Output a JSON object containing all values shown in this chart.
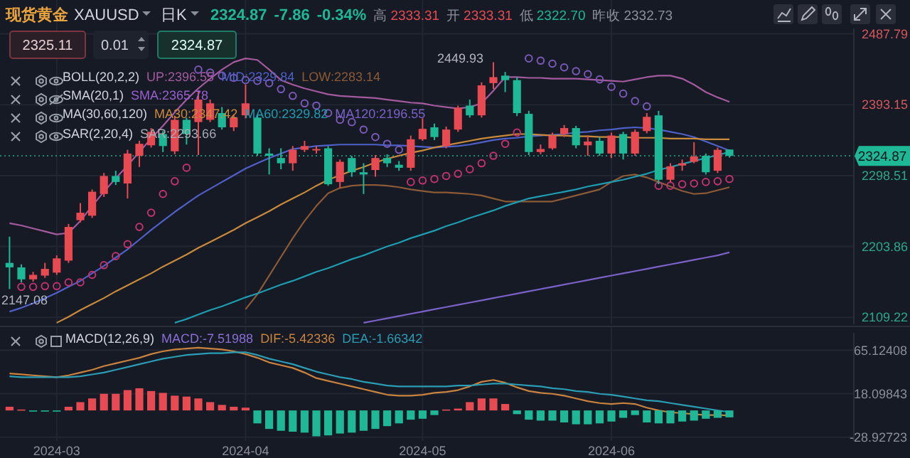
{
  "chart_data": [
    {
      "type": "candlestick",
      "title": "现货黄金",
      "legend": "top left",
      "grid": true,
      "tick_labels": "y",
      "categories": [
        null,
        null,
        null,
        null,
        null,
        null,
        null,
        null,
        null,
        null,
        null,
        null,
        null,
        null,
        null,
        null,
        null,
        null,
        null,
        null,
        null,
        null,
        null,
        null,
        null,
        null,
        null,
        null,
        null,
        null,
        null,
        null,
        null,
        null,
        null,
        null,
        null,
        null,
        null,
        null,
        null,
        null,
        null,
        null,
        null,
        null,
        null,
        null,
        null,
        null,
        null,
        null,
        null,
        null,
        null,
        null,
        null,
        null,
        null,
        null,
        null,
        null
      ],
      "ohlc": [
        [
          2182,
          2217,
          2147.08,
          2176
        ],
        [
          2176,
          2180,
          2156,
          2160
        ],
        [
          2160,
          2170,
          2157,
          2166
        ],
        [
          2165,
          2182,
          2162,
          2174
        ],
        [
          2169,
          2192,
          2166,
          2188
        ],
        [
          2185,
          2234,
          2182,
          2230
        ],
        [
          2239,
          2262,
          2236,
          2249
        ],
        [
          2245,
          2280,
          2242,
          2277
        ],
        [
          2274,
          2302,
          2270,
          2298
        ],
        [
          2298,
          2305,
          2286,
          2290
        ],
        [
          2288,
          2333,
          2268,
          2328
        ],
        [
          2325,
          2345,
          2310,
          2341
        ],
        [
          2339,
          2362,
          2336,
          2357
        ],
        [
          2354,
          2358,
          2330,
          2338
        ],
        [
          2331,
          2378,
          2327,
          2373
        ],
        [
          2373,
          2376,
          2340,
          2354
        ],
        [
          2370,
          2412,
          2326,
          2400
        ],
        [
          2373,
          2400,
          2370,
          2395
        ],
        [
          2382,
          2390,
          2360,
          2363
        ],
        [
          2363,
          2380,
          2358,
          2376
        ],
        [
          2379,
          2420,
          2375,
          2395
        ],
        [
          2376,
          2380,
          2325,
          2328
        ],
        [
          2328,
          2335,
          2300,
          2325
        ],
        [
          2322,
          2335,
          2307,
          2315
        ],
        [
          2315,
          2338,
          2305,
          2333
        ],
        [
          2333,
          2345,
          2330,
          2338
        ],
        [
          2333,
          2338,
          2328,
          2334
        ],
        [
          2335,
          2338,
          2285,
          2287
        ],
        [
          2290,
          2320,
          2282,
          2317
        ],
        [
          2322,
          2325,
          2297,
          2303
        ],
        [
          2303,
          2315,
          2274,
          2300
        ],
        [
          2306,
          2326,
          2297,
          2322
        ],
        [
          2322,
          2327,
          2310,
          2315
        ],
        [
          2313,
          2318,
          2305,
          2309
        ],
        [
          2309,
          2352,
          2305,
          2347
        ],
        [
          2347,
          2375,
          2345,
          2361
        ],
        [
          2363,
          2368,
          2346,
          2350
        ],
        [
          2338,
          2364,
          2335,
          2360
        ],
        [
          2360,
          2392,
          2357,
          2389
        ],
        [
          2392,
          2400,
          2376,
          2379
        ],
        [
          2379,
          2423,
          2376,
          2419
        ],
        [
          2422,
          2449.93,
          2414,
          2430
        ],
        [
          2432,
          2437,
          2410,
          2426
        ],
        [
          2426,
          2430,
          2378,
          2382
        ],
        [
          2381,
          2385,
          2326,
          2330
        ],
        [
          2330,
          2340,
          2327,
          2334
        ],
        [
          2335,
          2356,
          2333,
          2352
        ],
        [
          2354,
          2366,
          2350,
          2362
        ],
        [
          2362,
          2365,
          2335,
          2339
        ],
        [
          2339,
          2352,
          2325,
          2344
        ],
        [
          2345,
          2350,
          2325,
          2328
        ],
        [
          2328,
          2356,
          2322,
          2352
        ],
        [
          2354,
          2357,
          2320,
          2328
        ],
        [
          2328,
          2360,
          2325,
          2357
        ],
        [
          2358,
          2382,
          2355,
          2377
        ],
        [
          2379,
          2385,
          2287,
          2293
        ],
        [
          2293,
          2315,
          2290,
          2311
        ],
        [
          2312,
          2320,
          2305,
          2315
        ],
        [
          2317,
          2343,
          2315,
          2324
        ],
        [
          2325,
          2328,
          2300,
          2303
        ],
        [
          2305,
          2336,
          2302,
          2333
        ],
        [
          2333.31,
          2333.31,
          2322.7,
          2324.87
        ]
      ],
      "colors": [
        "#1fb896",
        "#1fb896",
        "#e84a52",
        "#e84a52",
        "#e84a52",
        "#e84a52",
        "#e84a52",
        "#e84a52",
        "#e84a52",
        "#1fb896",
        "#e84a52",
        "#e84a52",
        "#e84a52",
        "#1fb896",
        "#e84a52",
        "#1fb896",
        "#e84a52",
        "#e84a52",
        "#1fb896",
        "#e84a52",
        "#e84a52",
        "#1fb896",
        "#1fb896",
        "#1fb896",
        "#e84a52",
        "#e84a52",
        "#e84a52",
        "#1fb896",
        "#e84a52",
        "#1fb896",
        "#1fb896",
        "#e84a52",
        "#1fb896",
        "#1fb896",
        "#e84a52",
        "#e84a52",
        "#1fb896",
        "#e84a52",
        "#e84a52",
        "#1fb896",
        "#e84a52",
        "#e84a52",
        "#1fb896",
        "#1fb896",
        "#1fb896",
        "#e84a52",
        "#e84a52",
        "#e84a52",
        "#1fb896",
        "#e84a52",
        "#1fb896",
        "#e84a52",
        "#1fb896",
        "#e84a52",
        "#e84a52",
        "#1fb896",
        "#e84a52",
        "#e84a52",
        "#e84a52",
        "#1fb896",
        "#e84a52",
        "#1fb896"
      ],
      "series": [
        {
          "type": "line",
          "name": "UP:2396.55",
          "color": "#a45a9e",
          "values": [
            2235,
            2232,
            2228,
            2224,
            2220,
            2222,
            2238,
            2258,
            2277,
            2295,
            2312,
            2330,
            2348,
            2365,
            2383,
            2400,
            2415,
            2428,
            2440,
            2450,
            2455,
            2453,
            2440,
            2426,
            2420,
            2415,
            2411,
            2407,
            2405,
            2404,
            2403,
            2402,
            2400,
            2398,
            2396,
            2395,
            2392,
            2390,
            2388,
            2390,
            2395,
            2412,
            2430,
            2430,
            2429,
            2429,
            2428,
            2428,
            2428,
            2427,
            2426,
            2425,
            2424,
            2427,
            2430,
            2432,
            2432,
            2428,
            2420,
            2410,
            2403,
            2397
          ]
        },
        {
          "type": "line",
          "name": "MID:2329.84",
          "color": "#4f60c8",
          "values": [
            2117,
            2122,
            2128,
            2135,
            2142,
            2150,
            2158,
            2168,
            2178,
            2189,
            2200,
            2213,
            2226,
            2238,
            2250,
            2261,
            2272,
            2281,
            2290,
            2299,
            2308,
            2315,
            2322,
            2328,
            2334,
            2336,
            2338,
            2339,
            2340,
            2340,
            2340,
            2340,
            2339,
            2339,
            2338,
            2337,
            2336,
            2337,
            2338,
            2340,
            2343,
            2346,
            2348,
            2349,
            2351,
            2352,
            2353,
            2354,
            2356,
            2357,
            2359,
            2360,
            2362,
            2363,
            2362,
            2360,
            2357,
            2354,
            2350,
            2344,
            2338,
            2332
          ]
        },
        {
          "type": "line",
          "name": "LOW:2283.14",
          "color": "#8c5a35",
          "values": [
            null,
            null,
            null,
            null,
            null,
            null,
            null,
            null,
            null,
            null,
            null,
            null,
            null,
            null,
            null,
            null,
            null,
            null,
            null,
            null,
            2120,
            2140,
            2165,
            2190,
            2215,
            2238,
            2258,
            2275,
            2282,
            2285,
            2286,
            2286,
            2285,
            2283,
            2280,
            2278,
            2276,
            2276,
            2275,
            2274,
            2272,
            2268,
            2264,
            2264,
            2264,
            2264,
            2264,
            2268,
            2272,
            2276,
            2280,
            2290,
            2298,
            2300,
            2296,
            2290,
            2284,
            2278,
            2274,
            2275,
            2279,
            2283
          ]
        },
        {
          "type": "line",
          "name": "MA30:2347.42",
          "color": "#c98a3c",
          "values": [
            null,
            null,
            null,
            null,
            2102,
            2110,
            2119,
            2127,
            2135,
            2144,
            2152,
            2160,
            2168,
            2177,
            2185,
            2193,
            2202,
            2210,
            2218,
            2226,
            2235,
            2243,
            2251,
            2260,
            2268,
            2276,
            2285,
            2293,
            2299,
            2305,
            2310,
            2316,
            2321,
            2325,
            2329,
            2332,
            2336,
            2339,
            2342,
            2345,
            2348,
            2350,
            2352,
            2354,
            2354,
            2353,
            2352,
            2352,
            2351,
            2351,
            2350,
            2350,
            2350,
            2349,
            2349,
            2349,
            2348,
            2348,
            2348,
            2347,
            2347,
            2347
          ]
        },
        {
          "type": "line",
          "name": "MA60:2329.82",
          "color": "#1e9cb0",
          "values": [
            null,
            null,
            null,
            null,
            null,
            null,
            null,
            null,
            null,
            null,
            null,
            null,
            null,
            null,
            2102,
            2107,
            2113,
            2119,
            2124,
            2130,
            2136,
            2141,
            2147,
            2153,
            2158,
            2164,
            2170,
            2175,
            2181,
            2187,
            2192,
            2198,
            2204,
            2209,
            2215,
            2220,
            2225,
            2231,
            2236,
            2242,
            2247,
            2252,
            2258,
            2263,
            2268,
            2271,
            2274,
            2277,
            2280,
            2284,
            2287,
            2290,
            2293,
            2297,
            2301,
            2306,
            2310,
            2314,
            2318,
            2322,
            2326,
            2330
          ]
        },
        {
          "type": "line",
          "name": "MA120:2196.55",
          "color": "#7b62c9",
          "values": [
            null,
            null,
            null,
            null,
            null,
            null,
            null,
            null,
            null,
            null,
            null,
            null,
            null,
            null,
            null,
            null,
            null,
            null,
            null,
            null,
            null,
            null,
            null,
            null,
            null,
            null,
            null,
            null,
            null,
            null,
            2102,
            2105,
            2108,
            2111,
            2114,
            2117,
            2120,
            2123,
            2126,
            2129,
            2132,
            2135,
            2138,
            2141,
            2144,
            2147,
            2150,
            2153,
            2156,
            2159,
            2162,
            2165,
            2168,
            2171,
            2174,
            2177,
            2180,
            2183,
            2186,
            2189,
            2192,
            2196
          ]
        },
        {
          "type": "scatter",
          "color": "#c2326e",
          "marker": "circle",
          "values": [
            null,
            2150,
            2150,
            2151,
            2151,
            2156,
            2156,
            2166,
            2179,
            2191,
            2207,
            2230,
            2249,
            2274,
            2291,
            2309,
            null,
            null,
            null,
            null,
            null,
            null,
            null,
            null,
            null,
            null,
            null,
            null,
            null,
            null,
            null,
            null,
            null,
            null,
            2290,
            2292,
            2294,
            2298,
            2301,
            2307,
            2315,
            2325,
            2341,
            2356,
            null,
            null,
            null,
            null,
            null,
            null,
            null,
            null,
            null,
            null,
            null,
            2285,
            2285,
            2287,
            2288,
            2290,
            2291,
            2294
          ]
        },
        {
          "type": "scatter",
          "color": "#7a5ab8",
          "marker": "circle",
          "values": [
            null,
            null,
            null,
            null,
            null,
            null,
            null,
            null,
            null,
            null,
            null,
            null,
            null,
            null,
            null,
            null,
            2440,
            2436,
            2432,
            2429,
            2426,
            2425,
            2422,
            2414,
            2405,
            2395,
            2392,
            2382,
            2373,
            2370,
            2360,
            2350,
            2341,
            2333,
            null,
            null,
            null,
            null,
            null,
            null,
            null,
            null,
            null,
            null,
            2455,
            2452,
            2448,
            2443,
            2438,
            2434,
            2427,
            2417,
            2408,
            2398,
            2391,
            null,
            null,
            null,
            null,
            null,
            null,
            null
          ]
        }
      ],
      "ylim": [
        2100,
        2495
      ],
      "yticks": [
        2109.22,
        2203.86,
        2298.51,
        2393.15,
        2487.79
      ],
      "ref_lines": [
        {
          "axis": "y",
          "value": 2324.87,
          "color": "#1fb896",
          "line_style": "dotted"
        }
      ],
      "annotations": [
        "XAUUSD",
        "日K",
        "2324.87",
        "-7.86",
        "-0.34%",
        "高",
        "2333.31",
        "开",
        "2333.31",
        "低",
        "2322.70",
        "昨收",
        "2332.73",
        "2325.11",
        "0.01",
        "2324.87",
        "BOLL(20,2,2)",
        "SMA(20,1)",
        "SMA:2365.78",
        "MA(30,60,120)",
        "SAR(2,20,4)",
        "SAR:2293.66",
        "2449.93",
        "2147.08",
        "2324.87"
      ]
    },
    {
      "type": "bar",
      "legend": "top left",
      "grid": true,
      "categories": [
        null,
        null,
        null,
        null,
        "2024-03",
        null,
        null,
        null,
        null,
        null,
        null,
        null,
        null,
        null,
        null,
        null,
        null,
        null,
        null,
        null,
        "2024-04",
        null,
        null,
        null,
        null,
        null,
        null,
        null,
        null,
        null,
        null,
        null,
        null,
        null,
        null,
        "2024-05",
        null,
        null,
        null,
        null,
        null,
        null,
        null,
        null,
        null,
        null,
        null,
        null,
        null,
        null,
        null,
        "2024-06",
        null,
        null,
        null,
        null,
        null,
        null,
        null,
        null,
        null,
        null
      ],
      "series": [
        {
          "type": "bar",
          "color": "#e84a52",
          "values": [
            4,
            1,
            null,
            null,
            null,
            4,
            9,
            13,
            18,
            18,
            22,
            24,
            21,
            19,
            16,
            15,
            13,
            9,
            6,
            4,
            3,
            null,
            null,
            null,
            null,
            null,
            null,
            null,
            null,
            null,
            null,
            null,
            null,
            null,
            null,
            null,
            null,
            1,
            2,
            9,
            13,
            13,
            7,
            null,
            null,
            null,
            null,
            null,
            null,
            null,
            null,
            null,
            null,
            null,
            null,
            null,
            null,
            null,
            null,
            null,
            null,
            null
          ]
        },
        {
          "type": "bar",
          "color": "#1fb896",
          "values": [
            null,
            null,
            -1,
            -1,
            -1,
            null,
            null,
            null,
            null,
            null,
            null,
            null,
            null,
            null,
            null,
            null,
            null,
            null,
            null,
            null,
            null,
            -14,
            -20,
            -22,
            -23,
            -24,
            -28,
            -27,
            -25,
            -24,
            -22,
            -20,
            -17,
            -14,
            -10,
            -9,
            -5,
            null,
            null,
            null,
            null,
            null,
            null,
            -4,
            -10,
            -11,
            -11,
            -13,
            -15,
            -15,
            -14,
            -12,
            -8,
            -5,
            -13,
            -14,
            -14,
            -12,
            -11,
            -9,
            -8,
            -7.5
          ]
        },
        {
          "type": "line",
          "name": "DIF:-5.42336",
          "color": "#c9833e",
          "values": [
            40,
            39,
            38,
            37,
            36,
            38,
            41,
            44,
            48,
            51,
            54,
            57,
            61,
            64,
            66,
            67,
            68,
            67,
            66,
            64,
            61,
            57,
            52,
            49,
            46,
            41,
            35,
            32,
            29,
            26,
            23,
            20,
            17,
            16,
            16,
            17,
            19,
            20,
            22,
            26,
            31,
            33,
            30,
            25,
            21,
            19,
            18,
            16,
            13,
            10,
            8,
            7,
            8,
            7,
            3,
            0,
            -2,
            -3,
            -4,
            -5,
            -5,
            -5.4
          ]
        },
        {
          "type": "line",
          "name": "DEA:-1.66342",
          "color": "#2a9db5",
          "values": [
            37,
            36,
            36,
            36,
            36,
            36,
            37,
            39,
            41,
            44,
            47,
            50,
            53,
            56,
            58,
            60,
            61,
            62,
            62,
            63,
            63,
            60,
            56,
            53,
            50,
            46,
            42,
            39,
            36,
            34,
            31,
            29,
            27,
            26,
            26,
            26,
            26,
            26,
            27,
            27,
            28,
            29,
            29,
            28,
            27,
            26,
            24,
            23,
            21,
            20,
            18,
            17,
            15,
            13,
            11,
            10,
            8,
            6,
            4,
            2,
            0,
            -1.7
          ]
        }
      ],
      "ylim": [
        -33,
        84
      ],
      "yticks": [
        -28.92723,
        18.09843,
        65.12408
      ],
      "annotations": [
        "MACD(12,26,9)",
        "MACD:-7.51988"
      ]
    }
  ]
}
